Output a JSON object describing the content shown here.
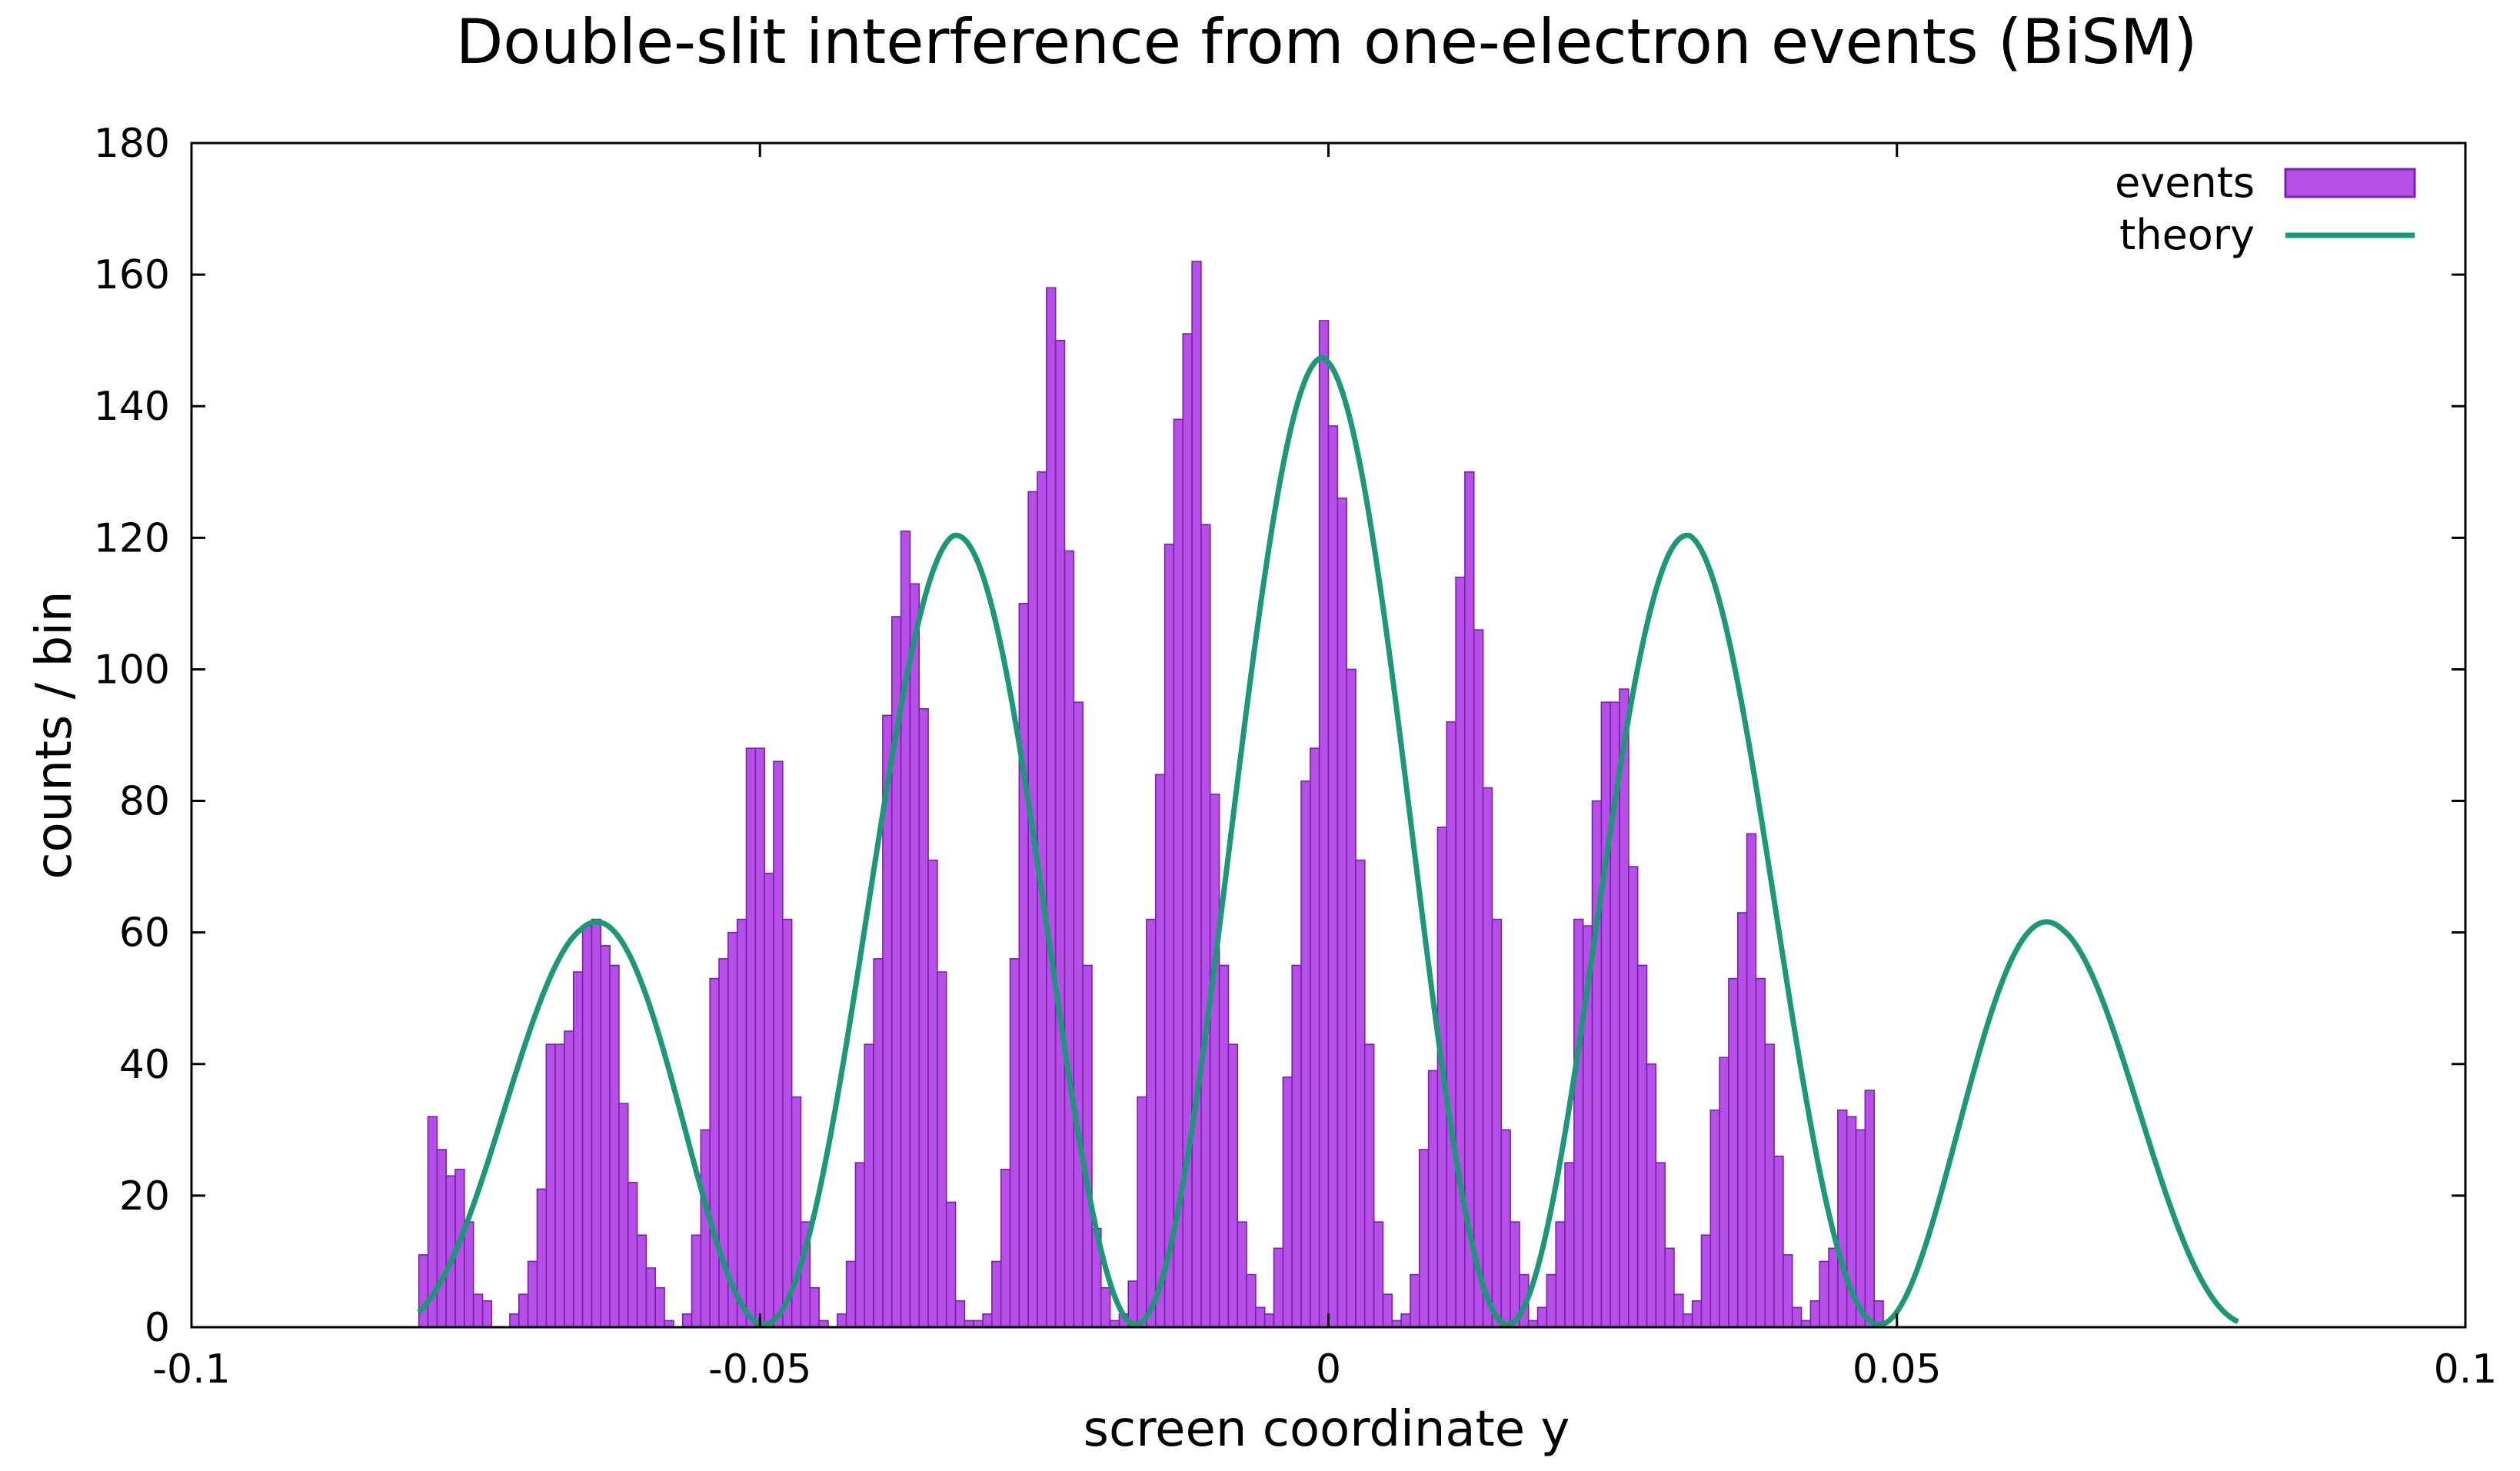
{
  "chart_data": {
    "type": "bar",
    "title": "Double-slit interference from one-electron events (BiSM)",
    "xlabel": "screen coordinate y",
    "ylabel": "counts / bin",
    "xlim": [
      -0.1,
      0.1
    ],
    "ylim": [
      0,
      180
    ],
    "xticks": [
      -0.1,
      -0.05,
      0,
      0.05,
      0.1
    ],
    "xtick_labels": [
      "-0.1",
      "-0.05",
      "0",
      "0.05",
      "0.1"
    ],
    "yticks": [
      0,
      20,
      40,
      60,
      80,
      100,
      120,
      140,
      160,
      180
    ],
    "ytick_labels": [
      "0",
      "20",
      "40",
      "60",
      "80",
      "100",
      "120",
      "140",
      "160",
      "180"
    ],
    "grid": false,
    "legend_position": "top-right",
    "series": [
      {
        "name": "events",
        "kind": "histogram",
        "color": "#b54fe8",
        "edge_color": "#7a1fb0",
        "bin_start": -0.08,
        "bin_width": 0.0008,
        "values": [
          11,
          32,
          27,
          23,
          24,
          16,
          5,
          4,
          0,
          0,
          2,
          5,
          10,
          21,
          43,
          43,
          45,
          54,
          61,
          62,
          58,
          55,
          34,
          22,
          14,
          9,
          6,
          1,
          0,
          2,
          14,
          30,
          53,
          56,
          60,
          62,
          88,
          88,
          69,
          86,
          62,
          35,
          16,
          6,
          1,
          0,
          2,
          10,
          25,
          43,
          56,
          93,
          108,
          121,
          113,
          94,
          71,
          54,
          19,
          4,
          1,
          1,
          2,
          10,
          24,
          56,
          110,
          127,
          130,
          158,
          150,
          118,
          95,
          55,
          15,
          6,
          1,
          2,
          7,
          35,
          62,
          84,
          119,
          138,
          151,
          162,
          122,
          81,
          55,
          43,
          16,
          8,
          3,
          2,
          12,
          38,
          55,
          83,
          88,
          153,
          137,
          126,
          100,
          71,
          43,
          16,
          5,
          1,
          2,
          8,
          27,
          39,
          76,
          92,
          114,
          130,
          106,
          82,
          62,
          30,
          16,
          8,
          1,
          3,
          8,
          16,
          25,
          62,
          61,
          80,
          95,
          95,
          97,
          70,
          55,
          40,
          25,
          12,
          5,
          2,
          4,
          14,
          33,
          41,
          53,
          63,
          75,
          53,
          43,
          26,
          11,
          3,
          1,
          4,
          10,
          12,
          33,
          32,
          30,
          36,
          4
        ]
      },
      {
        "name": "theory",
        "kind": "line",
        "color": "#1a9878",
        "equation": "I(y) = A(y) * cos^2(pi * (y + 0.0006) / 0.0327)",
        "envelope_points": [
          [
            -0.0006,
            147
          ],
          [
            -0.0166,
            140
          ],
          [
            -0.033,
            120
          ],
          [
            -0.0496,
            91
          ],
          [
            -0.0658,
            60
          ],
          [
            -0.0824,
            34
          ]
        ],
        "x_range": [
          -0.08,
          0.08
        ]
      }
    ]
  }
}
